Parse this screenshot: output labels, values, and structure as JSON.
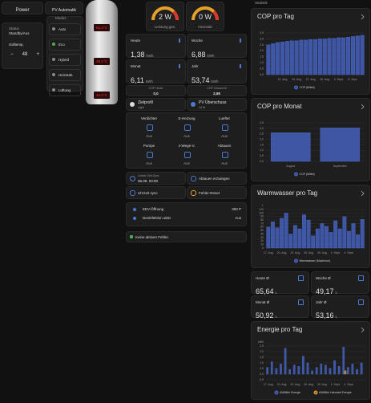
{
  "left": {
    "tabs": [
      "Power",
      "PV Automatik"
    ],
    "status": {
      "label": "Status",
      "value": "Standby/Aus"
    },
    "setpoint": {
      "label": "Solltemp.",
      "minus": "−",
      "value": "48",
      "plus": "+"
    },
    "modus": {
      "title": "Modus",
      "options": [
        "Auto",
        "Eco",
        "Hybrid",
        "Heizstab",
        "Lüftung"
      ]
    },
    "boiler_displays": [
      "52,4°C",
      "48,1°C",
      "44,0°C"
    ]
  },
  "middle": {
    "gauges": [
      {
        "value": "2 W",
        "label": "Leistung ges."
      },
      {
        "value": "0 W",
        "label": "Heizstab"
      }
    ],
    "energy": [
      {
        "label": "Heute",
        "value": "1,38",
        "unit": "kWh"
      },
      {
        "label": "Woche",
        "value": "6,88",
        "unit": "kWh"
      },
      {
        "label": "Monat",
        "value": "6,11",
        "unit": "kWh"
      },
      {
        "label": "Jahr",
        "value": "53,74",
        "unit": "kWh"
      }
    ],
    "cop": [
      {
        "label": "COP Heute",
        "value": "0,0"
      },
      {
        "label": "COP Gesamt Ø",
        "value": "2,88"
      }
    ],
    "profile": [
      {
        "label": "Zielprofil",
        "value": "night"
      },
      {
        "label": "PV Überschuss",
        "value": "24 W"
      }
    ],
    "components": [
      {
        "label": "Verdichter",
        "value": "Aus"
      },
      {
        "label": "E-Heizung",
        "value": "Aus"
      },
      {
        "label": "Luefter",
        "value": "Aus"
      },
      {
        "label": "Pumpe",
        "value": "Aus"
      },
      {
        "label": "4-Wege-V.",
        "value": "Aus"
      },
      {
        "label": "Abtauen",
        "value": "Aus"
      }
    ],
    "sync": {
      "label": "Letzter Zeit-Sync",
      "value": "06.09. 03:00"
    },
    "actions": [
      "Abtauen erzwingen",
      "Uhrzeit sync",
      "Fehler-Reset"
    ],
    "details": [
      {
        "label": "EEV-Öffnung",
        "value": "350 P"
      },
      {
        "label": "Desinfektion aktiv",
        "value": "Aus"
      }
    ],
    "errors": "Keine aktiven Fehler."
  },
  "right": {
    "header": "Statistik",
    "averages": [
      {
        "label": "Heute Ø",
        "value": "65,64",
        "unit": "L"
      },
      {
        "label": "Woche Ø",
        "value": "49,17",
        "unit": "L"
      },
      {
        "label": "Monat Ø",
        "value": "50,92",
        "unit": "L"
      },
      {
        "label": "Jahr Ø",
        "value": "53,16",
        "unit": "L"
      }
    ]
  },
  "chart_data": [
    {
      "type": "bar",
      "title": "COP pro Tag",
      "categories": [
        null,
        null,
        null,
        "21. Aug",
        null,
        null,
        "24. Aug",
        null,
        null,
        "27. Aug",
        null,
        null,
        "30. Aug",
        null,
        null,
        "2. Sept.",
        null,
        null,
        "5. Sept.",
        null,
        null
      ],
      "series": [
        {
          "name": "COP (Mittel)",
          "color": "#4a6ad0",
          "values": [
            2.5,
            2.6,
            2.7,
            2.75,
            2.8,
            2.85,
            2.85,
            2.9,
            2.9,
            2.95,
            2.95,
            3.0,
            3.0,
            3.05,
            3.05,
            3.1,
            3.1,
            3.15,
            3.2,
            3.25,
            3.3
          ]
        }
      ],
      "ylim": [
        0,
        3.5
      ],
      "yticks": [
        {
          "value": 0,
          "label": "0,0"
        },
        {
          "value": 0.5,
          "label": "0,5"
        },
        {
          "value": 1,
          "label": "1,0"
        },
        {
          "value": 1.5,
          "label": "1,5"
        },
        {
          "value": 2,
          "label": "2,0"
        },
        {
          "value": 2.5,
          "label": "2,5"
        },
        {
          "value": 3,
          "label": "3,0"
        },
        {
          "value": 3.5,
          "label": "3,5"
        }
      ],
      "grid": true
    },
    {
      "type": "bar",
      "title": "COP pro Monat",
      "categories": [
        "August",
        "September"
      ],
      "series": [
        {
          "name": "COP (Mittel)",
          "color": "#4a6ad0",
          "values": [
            2.6,
            3.05
          ]
        }
      ],
      "ylim": [
        0,
        3.5
      ],
      "yticks": [
        {
          "value": 0,
          "label": "0,0"
        },
        {
          "value": 0.5,
          "label": "0,5"
        },
        {
          "value": 1,
          "label": "1,0"
        },
        {
          "value": 1.5,
          "label": "1,5"
        },
        {
          "value": 2,
          "label": "2,0"
        },
        {
          "value": 2.5,
          "label": "2,5"
        },
        {
          "value": 3,
          "label": "3,0"
        },
        {
          "value": 3.5,
          "label": "3,5"
        }
      ],
      "grid": true
    },
    {
      "type": "bar",
      "title": "Warmwasser pro Tag",
      "y_unit": "L",
      "categories": [
        "17. Aug",
        null,
        null,
        "20. Aug",
        null,
        null,
        "23. Aug",
        null,
        null,
        "26. Aug",
        null,
        null,
        "29. Aug",
        null,
        null,
        "1. Sept.",
        null,
        null,
        "4. Sept.",
        null,
        null,
        null
      ],
      "series": [
        {
          "name": "Warmwasser (Maximum)",
          "color": "#4a6ad0",
          "values": [
            60,
            75,
            58,
            85,
            100,
            40,
            65,
            55,
            95,
            80,
            35,
            55,
            70,
            62,
            45,
            78,
            55,
            90,
            48,
            70,
            38,
            82
          ]
        }
      ],
      "ylim": [
        0,
        110
      ],
      "yticks": [
        0,
        10,
        20,
        30,
        40,
        50,
        60,
        70,
        80,
        90,
        100,
        110
      ],
      "grid": true
    },
    {
      "type": "bar",
      "title": "Energie pro Tag",
      "y_unit": "kWh",
      "categories": [
        "17. Aug",
        null,
        null,
        "20. Aug",
        null,
        null,
        "23. Aug",
        null,
        null,
        "26. Aug",
        null,
        null,
        "29. Aug",
        null,
        null,
        "1. Sept.",
        null,
        null,
        "4. Sept.",
        null,
        null,
        null
      ],
      "series": [
        {
          "name": "AWMtkh Energie",
          "color": "#4a6ad0",
          "values": [
            0.6,
            1.1,
            0.5,
            0.9,
            2.3,
            0.4,
            0.8,
            0.7,
            1.6,
            1.0,
            0.3,
            0.6,
            0.9,
            0.8,
            0.5,
            1.2,
            0.7,
            2.4,
            0.6,
            0.9,
            0.4,
            1.0
          ]
        },
        {
          "name": "AWMtkh Heizstab Energie",
          "color": "#e8a13a",
          "values": [
            0,
            0,
            0,
            0,
            0,
            0,
            0,
            0,
            0,
            0,
            0,
            0,
            0,
            0,
            0,
            0,
            0,
            0.3,
            0,
            0,
            0,
            0
          ]
        }
      ],
      "ylim": [
        -0.5,
        2.5
      ],
      "yticks": [
        {
          "value": -0.5,
          "label": "-0,5"
        },
        {
          "value": 0,
          "label": "0,0"
        },
        {
          "value": 0.5,
          "label": "0,5"
        },
        {
          "value": 1,
          "label": "1,0"
        },
        {
          "value": 1.5,
          "label": "1,5"
        },
        {
          "value": 2,
          "label": "2,0"
        },
        {
          "value": 2.5,
          "label": "2,5"
        }
      ],
      "grid": true
    }
  ]
}
